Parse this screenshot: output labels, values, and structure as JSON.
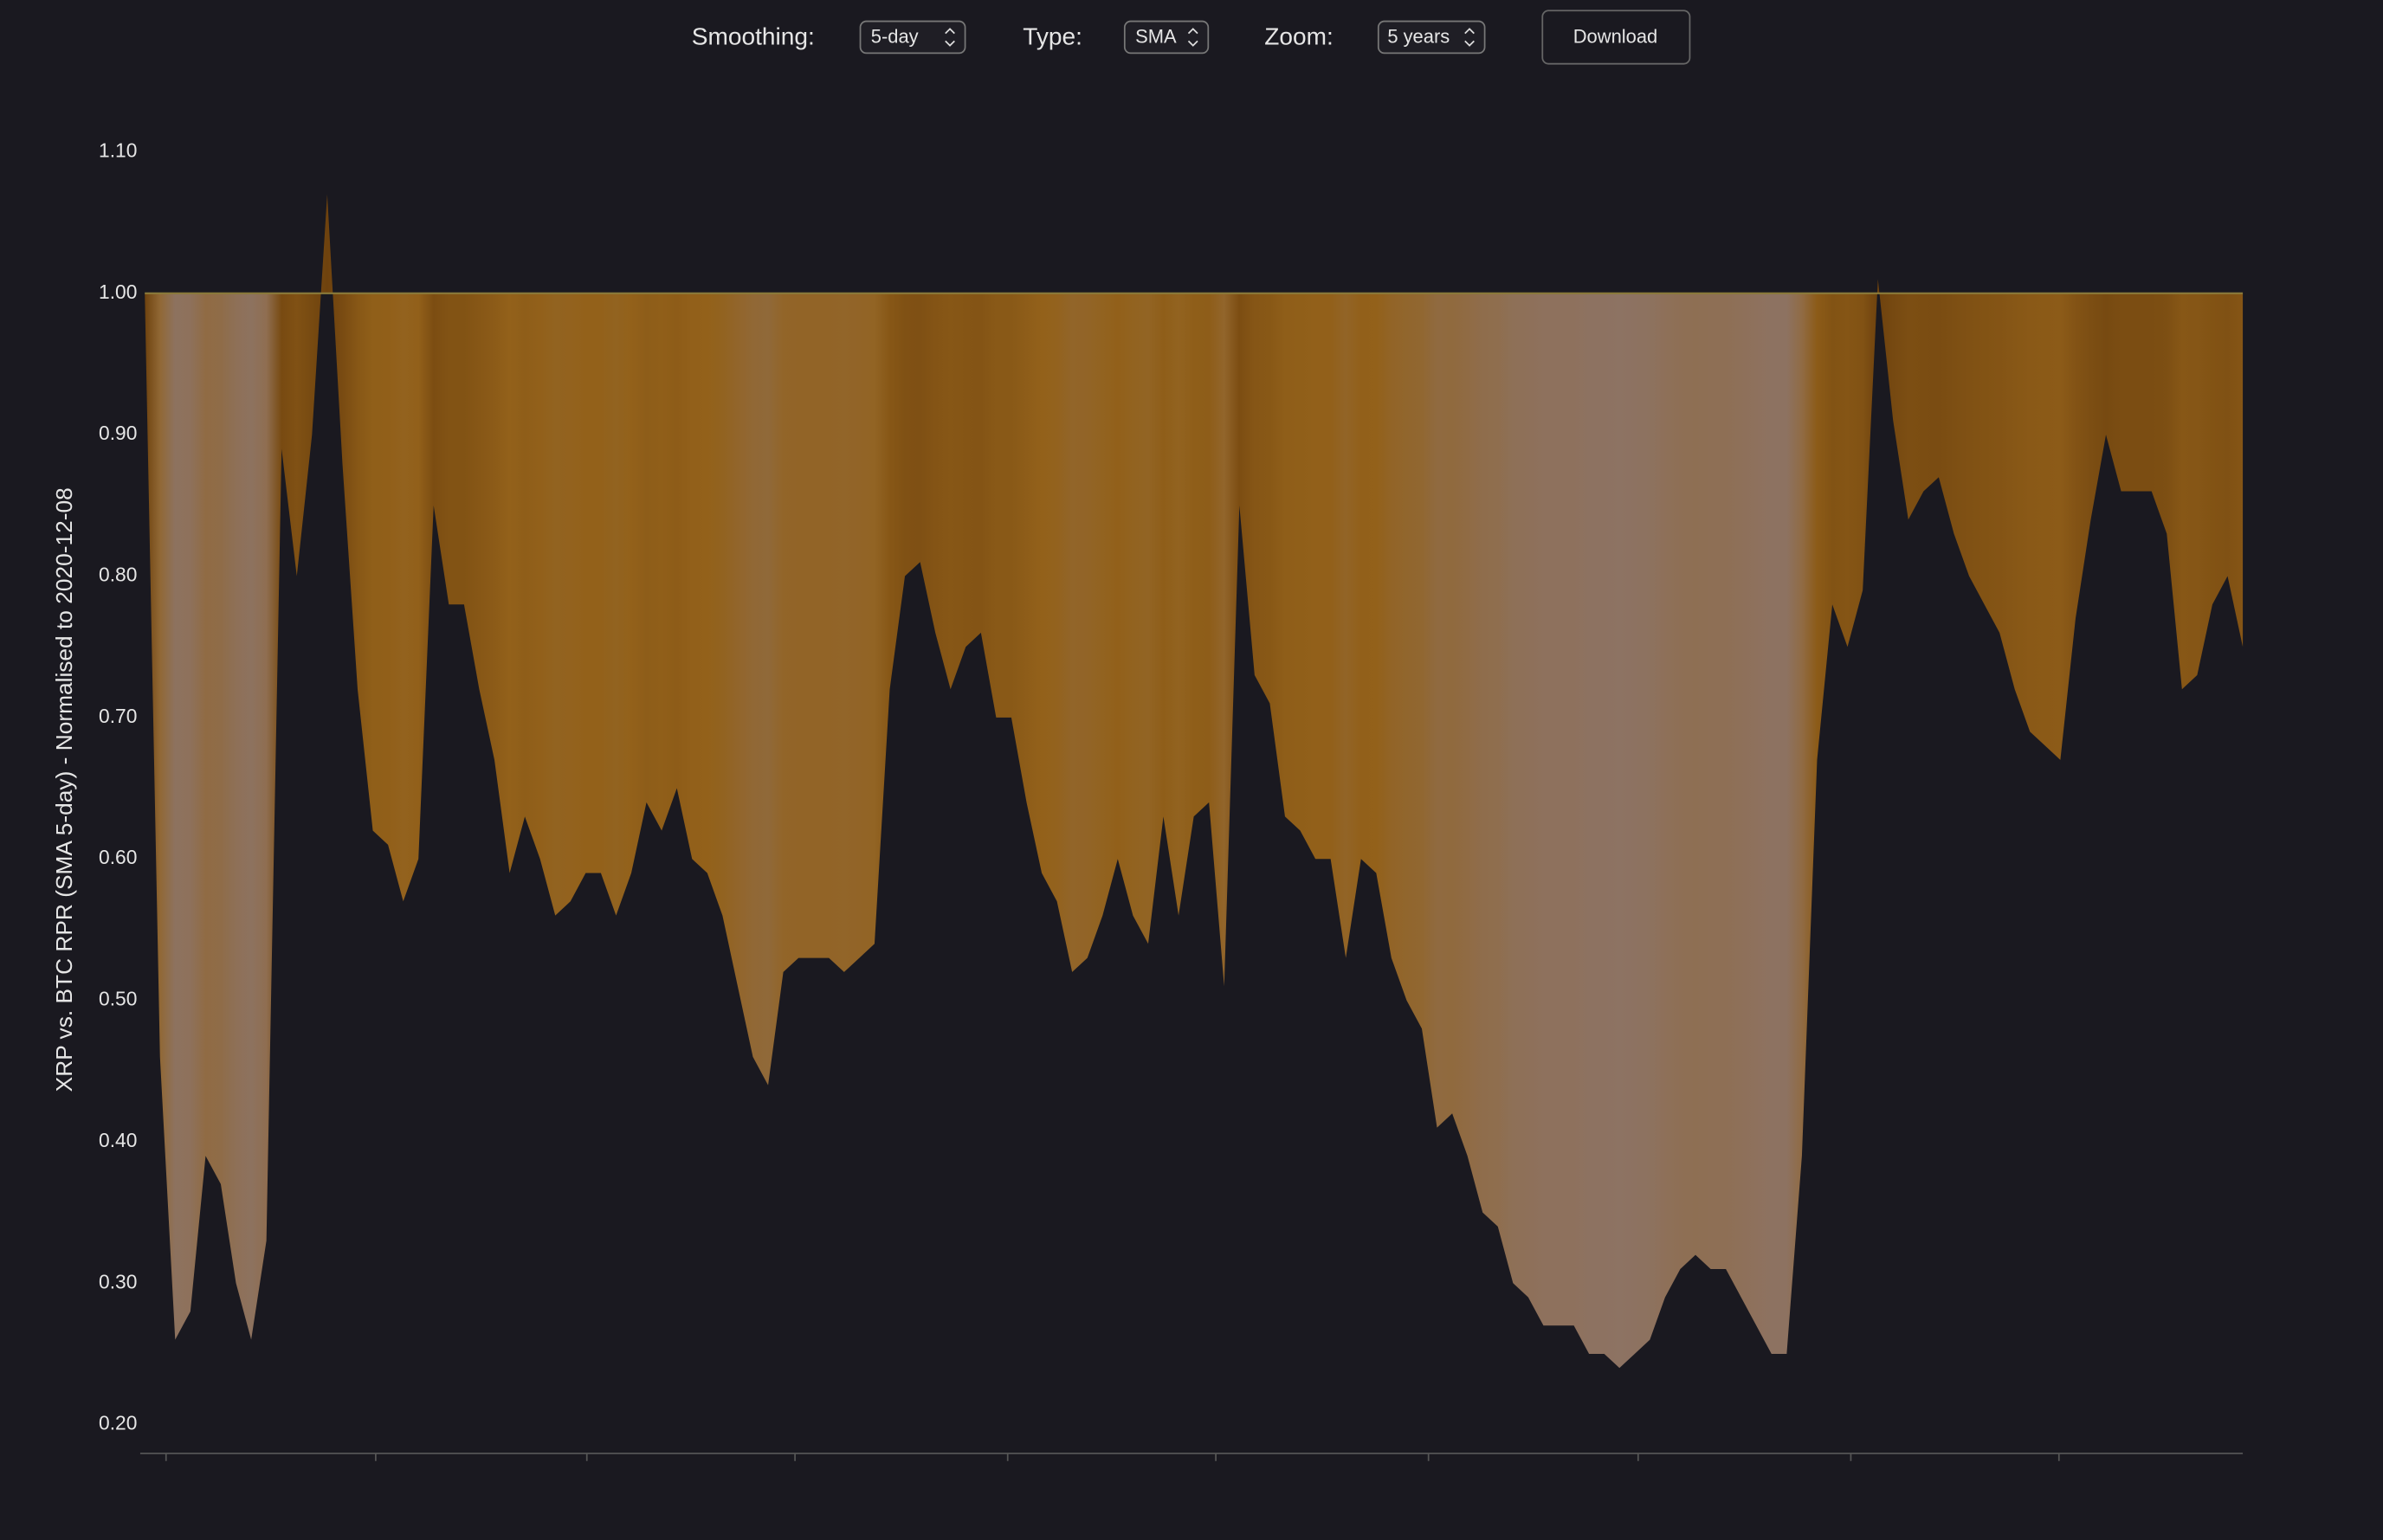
{
  "controls": {
    "smoothing_label": "Smoothing:",
    "smoothing_value": "5-day",
    "type_label": "Type:",
    "type_value": "SMA",
    "zoom_label": "Zoom:",
    "zoom_value": "5 years",
    "download": "Download"
  },
  "chart_data": {
    "type": "area",
    "ylabel": "XRP vs. BTC RPR (SMA 5-day) - Normalised to 2020-12-08",
    "baseline": 1,
    "colors": [
      "#6e420e",
      "#93611a",
      "#8c7670"
    ],
    "baseline_color": "#8a7a3a",
    "ylim": [
      0.18,
      1.12
    ],
    "yticks": [
      {
        "value": 0.2,
        "label": "0.20"
      },
      {
        "value": 0.3,
        "label": "0.30"
      },
      {
        "value": 0.4,
        "label": "0.40"
      },
      {
        "value": 0.5,
        "label": "0.50"
      },
      {
        "value": 0.6,
        "label": "0.60"
      },
      {
        "value": 0.7,
        "label": "0.70"
      },
      {
        "value": 0.8,
        "label": "0.80"
      },
      {
        "value": 0.9,
        "label": "0.90"
      },
      {
        "value": 1.0,
        "label": "1.00"
      },
      {
        "value": 1.1,
        "label": "1.10"
      }
    ],
    "values": [
      1.0,
      0.46,
      0.26,
      0.28,
      0.39,
      0.37,
      0.3,
      0.26,
      0.33,
      0.89,
      0.8,
      0.9,
      1.07,
      0.88,
      0.72,
      0.62,
      0.61,
      0.57,
      0.6,
      0.85,
      0.78,
      0.78,
      0.72,
      0.67,
      0.59,
      0.63,
      0.6,
      0.56,
      0.57,
      0.59,
      0.59,
      0.56,
      0.59,
      0.64,
      0.62,
      0.65,
      0.6,
      0.59,
      0.56,
      0.51,
      0.46,
      0.44,
      0.52,
      0.53,
      0.53,
      0.53,
      0.52,
      0.53,
      0.54,
      0.72,
      0.8,
      0.81,
      0.76,
      0.72,
      0.75,
      0.76,
      0.7,
      0.7,
      0.64,
      0.59,
      0.57,
      0.52,
      0.53,
      0.56,
      0.6,
      0.56,
      0.54,
      0.63,
      0.56,
      0.63,
      0.64,
      0.51,
      0.85,
      0.73,
      0.71,
      0.63,
      0.62,
      0.6,
      0.6,
      0.53,
      0.6,
      0.59,
      0.53,
      0.5,
      0.48,
      0.41,
      0.42,
      0.39,
      0.35,
      0.34,
      0.3,
      0.29,
      0.27,
      0.27,
      0.27,
      0.25,
      0.25,
      0.24,
      0.25,
      0.26,
      0.29,
      0.31,
      0.32,
      0.31,
      0.31,
      0.29,
      0.27,
      0.25,
      0.25,
      0.39,
      0.67,
      0.78,
      0.75,
      0.79,
      1.01,
      0.91,
      0.84,
      0.86,
      0.87,
      0.83,
      0.8,
      0.78,
      0.76,
      0.72,
      0.69,
      0.68,
      0.67,
      0.77,
      0.84,
      0.9,
      0.86,
      0.86,
      0.86,
      0.83,
      0.72,
      0.73,
      0.78,
      0.8,
      0.75
    ]
  }
}
